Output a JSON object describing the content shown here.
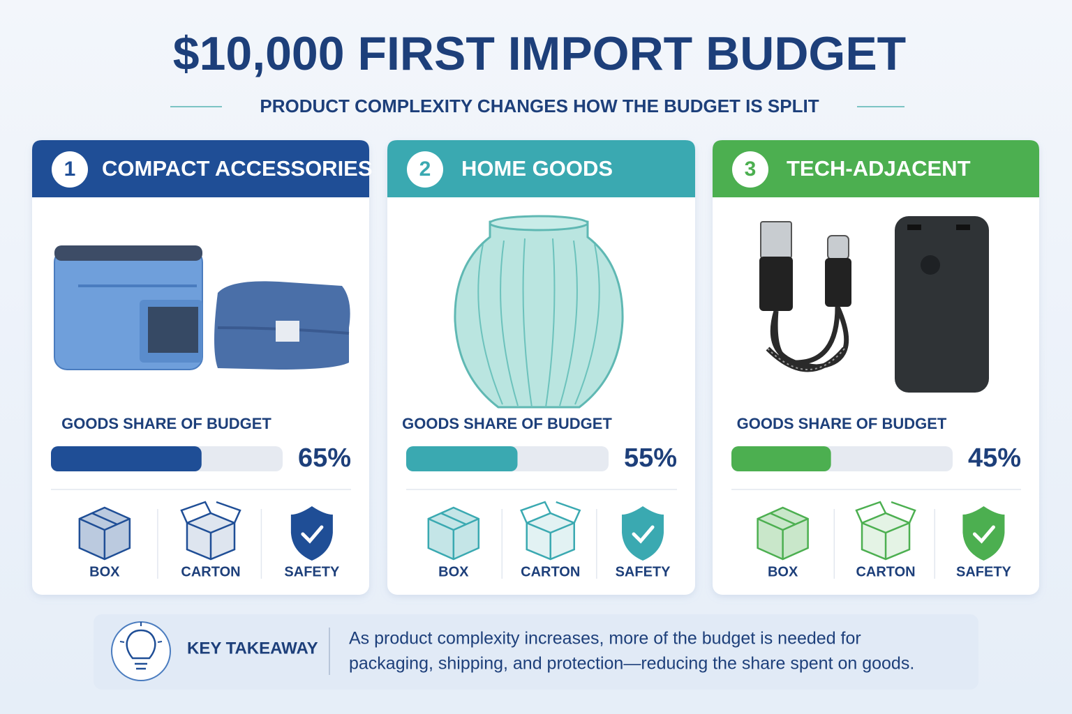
{
  "header": {
    "title": "$10,000 FIRST IMPORT BUDGET",
    "subtitle": "PRODUCT COMPLEXITY CHANGES HOW THE BUDGET IS SPLIT"
  },
  "share_scale": [
    0,
    100
  ],
  "cards": [
    {
      "number": "1",
      "title": "COMPACT ACCESSORIES",
      "color": "#1f4e96",
      "share_label": "GOODS SHARE OF BUDGET",
      "share": {
        "value": 65,
        "label": "65%"
      },
      "icons": [
        "BOX",
        "CARTON",
        "SAFETY"
      ]
    },
    {
      "number": "2",
      "title": "HOME GOODS",
      "color": "#3aa9b1",
      "share_label": "GOODS SHARE OF BUDGET",
      "share": {
        "value": 55,
        "label": "55%"
      },
      "icons": [
        "BOX",
        "CARTON",
        "SAFETY"
      ]
    },
    {
      "number": "3",
      "title": "TECH-ADJACENT",
      "color": "#4caf50",
      "share_label": "GOODS SHARE OF BUDGET",
      "share": {
        "value": 45,
        "label": "45%"
      },
      "icons": [
        "BOX",
        "CARTON",
        "SAFETY"
      ]
    }
  ],
  "takeaway": {
    "label": "KEY TAKEAWAY",
    "lines": [
      "As product complexity increases, more of the budget is needed for",
      "packaging, shipping, and protection—reducing the share spent on goods."
    ]
  }
}
